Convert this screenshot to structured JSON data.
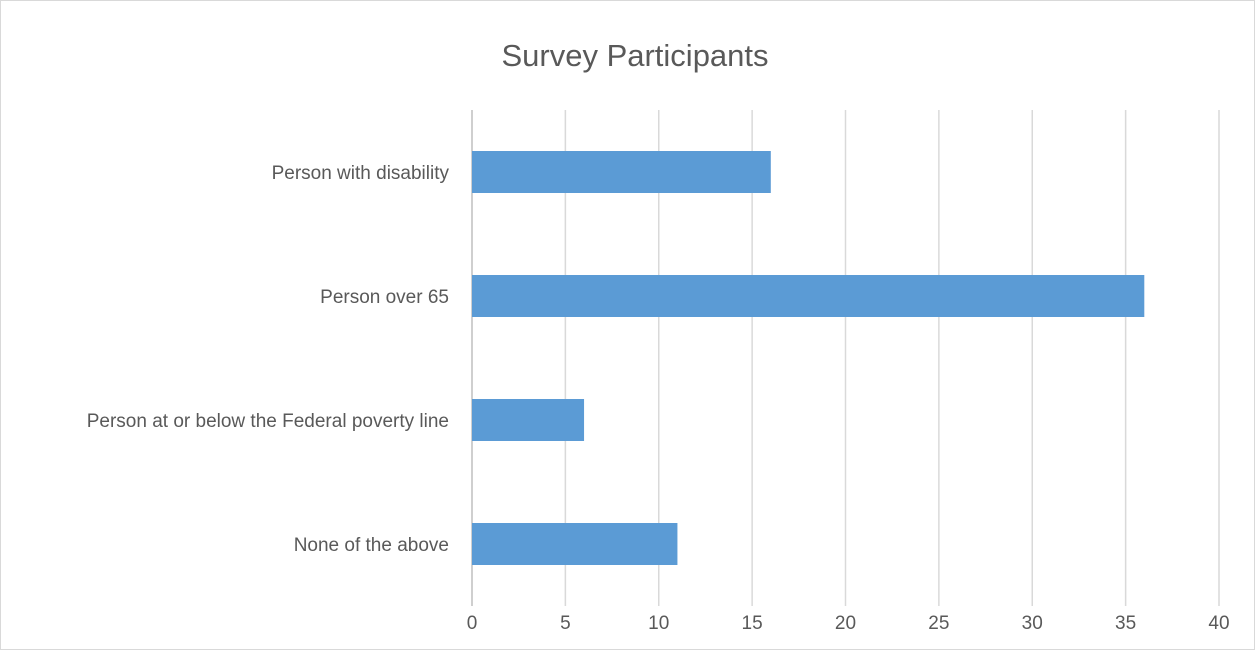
{
  "chart_data": {
    "type": "bar",
    "orientation": "horizontal",
    "title": "Survey Participants",
    "categories": [
      "Person with disability",
      "Person over 65",
      "Person at or below the Federal poverty line",
      "None of the above"
    ],
    "values": [
      16,
      36,
      6,
      11
    ],
    "xlim": [
      0,
      40
    ],
    "x_ticks": [
      0,
      5,
      10,
      15,
      20,
      25,
      30,
      35,
      40
    ],
    "xlabel": "",
    "ylabel": "",
    "grid": "vertical",
    "legend": "none",
    "bar_color": "#5b9bd5"
  }
}
